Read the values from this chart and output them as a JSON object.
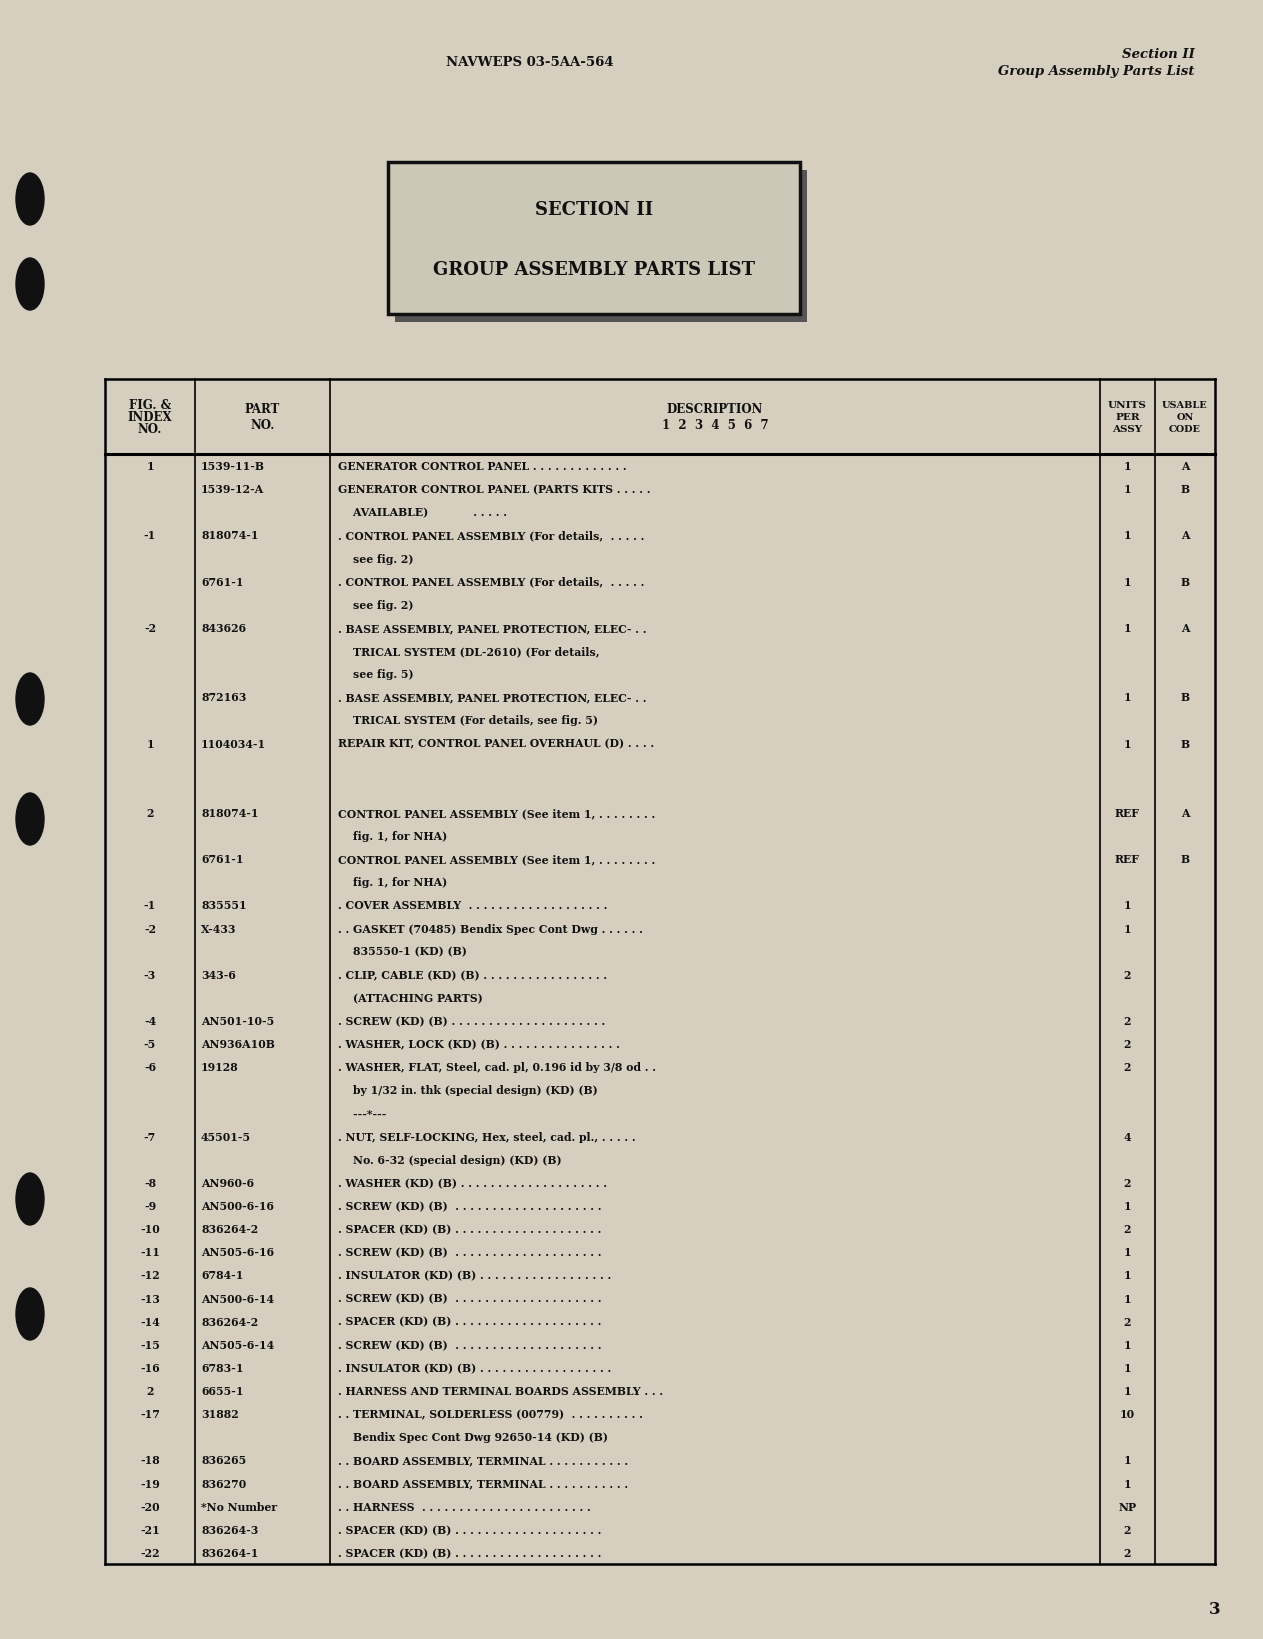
{
  "bg_color": "#d6cfc0",
  "header_left": "NAVWEPS 03-5AA-564",
  "header_right_line1": "Section II",
  "header_right_line2": "Group Assembly Parts List",
  "section_title_line1": "SECTION II",
  "section_title_line2": "GROUP ASSEMBLY PARTS LIST",
  "table_rows": [
    {
      "fig": "1",
      "part": "1539-11-B",
      "desc": "GENERATOR CONTROL PANEL . . . . . . . . . . . . .",
      "units": "1",
      "code": "A"
    },
    {
      "fig": "",
      "part": "1539-12-A",
      "desc": "GENERATOR CONTROL PANEL (PARTS KITS . . . . .",
      "units": "1",
      "code": "B"
    },
    {
      "fig": "",
      "part": "",
      "desc": "    AVAILABLE)            . . . . .",
      "units": "",
      "code": ""
    },
    {
      "fig": "-1",
      "part": "818074-1",
      "desc": ". CONTROL PANEL ASSEMBLY (For details,  . . . . .",
      "units": "1",
      "code": "A"
    },
    {
      "fig": "",
      "part": "",
      "desc": "    see fig. 2)",
      "units": "",
      "code": ""
    },
    {
      "fig": "",
      "part": "6761-1",
      "desc": ". CONTROL PANEL ASSEMBLY (For details,  . . . . .",
      "units": "1",
      "code": "B"
    },
    {
      "fig": "",
      "part": "",
      "desc": "    see fig. 2)",
      "units": "",
      "code": ""
    },
    {
      "fig": "-2",
      "part": "843626",
      "desc": ". BASE ASSEMBLY, PANEL PROTECTION, ELEC- . .",
      "units": "1",
      "code": "A"
    },
    {
      "fig": "",
      "part": "",
      "desc": "    TRICAL SYSTEM (DL-2610) (For details,",
      "units": "",
      "code": ""
    },
    {
      "fig": "",
      "part": "",
      "desc": "    see fig. 5)",
      "units": "",
      "code": ""
    },
    {
      "fig": "",
      "part": "872163",
      "desc": ". BASE ASSEMBLY, PANEL PROTECTION, ELEC- . .",
      "units": "1",
      "code": "B"
    },
    {
      "fig": "",
      "part": "",
      "desc": "    TRICAL SYSTEM (For details, see fig. 5)",
      "units": "",
      "code": ""
    },
    {
      "fig": "1",
      "part": "1104034-1",
      "desc": "REPAIR KIT, CONTROL PANEL OVERHAUL (D) . . . .",
      "units": "1",
      "code": "B"
    },
    {
      "fig": "",
      "part": "",
      "desc": "",
      "units": "",
      "code": ""
    },
    {
      "fig": "",
      "part": "",
      "desc": "",
      "units": "",
      "code": ""
    },
    {
      "fig": "2",
      "part": "818074-1",
      "desc": "CONTROL PANEL ASSEMBLY (See item 1, . . . . . . . .",
      "units": "REF",
      "code": "A"
    },
    {
      "fig": "",
      "part": "",
      "desc": "    fig. 1, for NHA)",
      "units": "",
      "code": ""
    },
    {
      "fig": "",
      "part": "6761-1",
      "desc": "CONTROL PANEL ASSEMBLY (See item 1, . . . . . . . .",
      "units": "REF",
      "code": "B"
    },
    {
      "fig": "",
      "part": "",
      "desc": "    fig. 1, for NHA)",
      "units": "",
      "code": ""
    },
    {
      "fig": "-1",
      "part": "835551",
      "desc": ". COVER ASSEMBLY  . . . . . . . . . . . . . . . . . . .",
      "units": "1",
      "code": ""
    },
    {
      "fig": "-2",
      "part": "X-433",
      "desc": ". . GASKET (70485) Bendix Spec Cont Dwg . . . . . .",
      "units": "1",
      "code": ""
    },
    {
      "fig": "",
      "part": "",
      "desc": "    835550-1 (KD) (B)",
      "units": "",
      "code": ""
    },
    {
      "fig": "-3",
      "part": "343-6",
      "desc": ". CLIP, CABLE (KD) (B) . . . . . . . . . . . . . . . . .",
      "units": "2",
      "code": ""
    },
    {
      "fig": "",
      "part": "",
      "desc": "    (ATTACHING PARTS)",
      "units": "",
      "code": ""
    },
    {
      "fig": "-4",
      "part": "AN501-10-5",
      "desc": ". SCREW (KD) (B) . . . . . . . . . . . . . . . . . . . . .",
      "units": "2",
      "code": ""
    },
    {
      "fig": "-5",
      "part": "AN936A10B",
      "desc": ". WASHER, LOCK (KD) (B) . . . . . . . . . . . . . . . .",
      "units": "2",
      "code": ""
    },
    {
      "fig": "-6",
      "part": "19128",
      "desc": ". WASHER, FLAT, Steel, cad. pl, 0.196 id by 3/8 od . .",
      "units": "2",
      "code": ""
    },
    {
      "fig": "",
      "part": "",
      "desc": "    by 1/32 in. thk (special design) (KD) (B)",
      "units": "",
      "code": ""
    },
    {
      "fig": "",
      "part": "",
      "desc": "    ---*---",
      "units": "",
      "code": ""
    },
    {
      "fig": "-7",
      "part": "45501-5",
      "desc": ". NUT, SELF-LOCKING, Hex, steel, cad. pl., . . . . .",
      "units": "4",
      "code": ""
    },
    {
      "fig": "",
      "part": "",
      "desc": "    No. 6-32 (special design) (KD) (B)",
      "units": "",
      "code": ""
    },
    {
      "fig": "-8",
      "part": "AN960-6",
      "desc": ". WASHER (KD) (B) . . . . . . . . . . . . . . . . . . . .",
      "units": "2",
      "code": ""
    },
    {
      "fig": "-9",
      "part": "AN500-6-16",
      "desc": ". SCREW (KD) (B)  . . . . . . . . . . . . . . . . . . . .",
      "units": "1",
      "code": ""
    },
    {
      "fig": "-10",
      "part": "836264-2",
      "desc": ". SPACER (KD) (B) . . . . . . . . . . . . . . . . . . . .",
      "units": "2",
      "code": ""
    },
    {
      "fig": "-11",
      "part": "AN505-6-16",
      "desc": ". SCREW (KD) (B)  . . . . . . . . . . . . . . . . . . . .",
      "units": "1",
      "code": ""
    },
    {
      "fig": "-12",
      "part": "6784-1",
      "desc": ". INSULATOR (KD) (B) . . . . . . . . . . . . . . . . . .",
      "units": "1",
      "code": ""
    },
    {
      "fig": "-13",
      "part": "AN500-6-14",
      "desc": ". SCREW (KD) (B)  . . . . . . . . . . . . . . . . . . . .",
      "units": "1",
      "code": ""
    },
    {
      "fig": "-14",
      "part": "836264-2",
      "desc": ". SPACER (KD) (B) . . . . . . . . . . . . . . . . . . . .",
      "units": "2",
      "code": ""
    },
    {
      "fig": "-15",
      "part": "AN505-6-14",
      "desc": ". SCREW (KD) (B)  . . . . . . . . . . . . . . . . . . . .",
      "units": "1",
      "code": ""
    },
    {
      "fig": "-16",
      "part": "6783-1",
      "desc": ". INSULATOR (KD) (B) . . . . . . . . . . . . . . . . . .",
      "units": "1",
      "code": ""
    },
    {
      "fig": "2",
      "part": "6655-1",
      "desc": ". HARNESS AND TERMINAL BOARDS ASSEMBLY . . .",
      "units": "1",
      "code": ""
    },
    {
      "fig": "-17",
      "part": "31882",
      "desc": ". . TERMINAL, SOLDERLESS (00779)  . . . . . . . . . .",
      "units": "10",
      "code": ""
    },
    {
      "fig": "",
      "part": "",
      "desc": "    Bendix Spec Cont Dwg 92650-14 (KD) (B)",
      "units": "",
      "code": ""
    },
    {
      "fig": "-18",
      "part": "836265",
      "desc": ". . BOARD ASSEMBLY, TERMINAL . . . . . . . . . . .",
      "units": "1",
      "code": ""
    },
    {
      "fig": "-19",
      "part": "836270",
      "desc": ". . BOARD ASSEMBLY, TERMINAL . . . . . . . . . . .",
      "units": "1",
      "code": ""
    },
    {
      "fig": "-20",
      "part": "*No Number",
      "desc": ". . HARNESS  . . . . . . . . . . . . . . . . . . . . . . .",
      "units": "NP",
      "code": ""
    },
    {
      "fig": "-21",
      "part": "836264-3",
      "desc": ". SPACER (KD) (B) . . . . . . . . . . . . . . . . . . . .",
      "units": "2",
      "code": ""
    },
    {
      "fig": "-22",
      "part": "836264-1",
      "desc": ". SPACER (KD) (B) . . . . . . . . . . . . . . . . . . . .",
      "units": "2",
      "code": ""
    }
  ],
  "page_number": "3"
}
